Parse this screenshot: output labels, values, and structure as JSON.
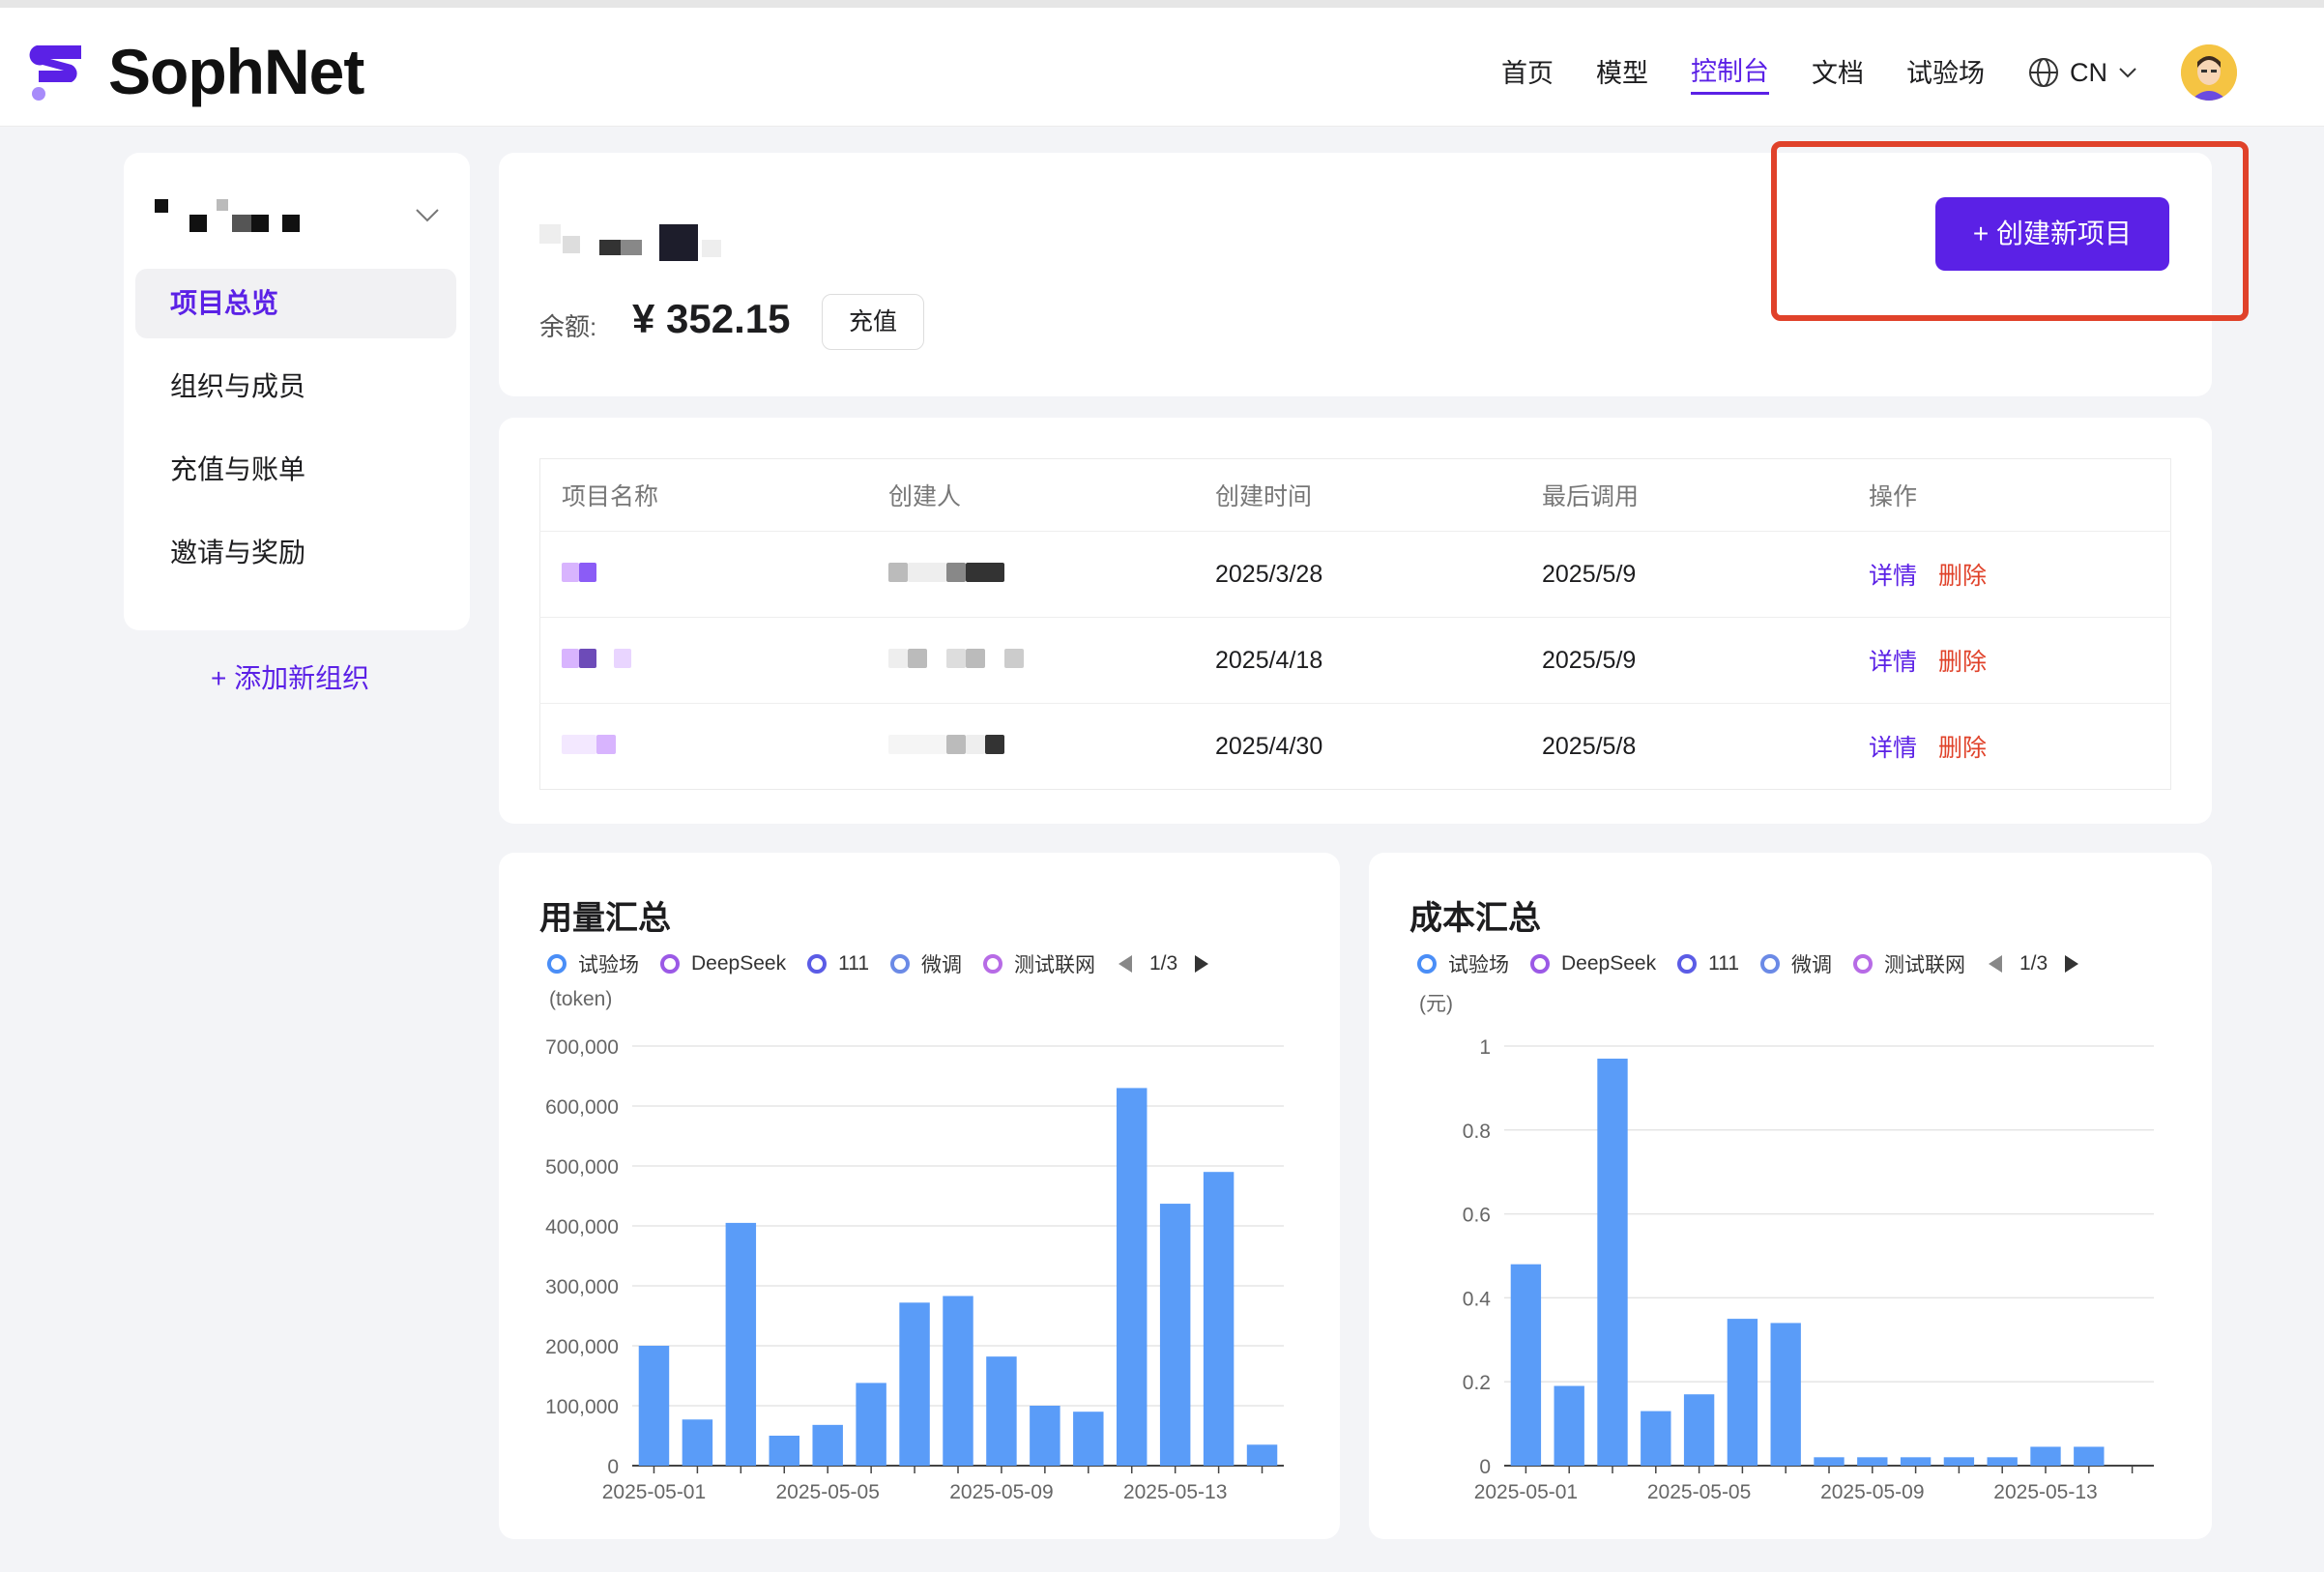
{
  "brand": {
    "name": "SophNet"
  },
  "nav": {
    "items": [
      "首页",
      "模型",
      "控制台",
      "文档",
      "试验场"
    ],
    "active": "控制台",
    "lang": "CN"
  },
  "sidebar": {
    "items": [
      "项目总览",
      "组织与成员",
      "充值与账单",
      "邀请与奖励"
    ],
    "active": "项目总览",
    "add_org": "+ 添加新组织"
  },
  "balance": {
    "label": "余额:",
    "value": "¥ 352.15",
    "recharge": "充值",
    "create_project": "+ 创建新项目"
  },
  "projects": {
    "headers": [
      "项目名称",
      "创建人",
      "创建时间",
      "最后调用",
      "操作"
    ],
    "rows": [
      {
        "created": "2025/3/28",
        "last_call": "2025/5/9"
      },
      {
        "created": "2025/4/18",
        "last_call": "2025/5/9"
      },
      {
        "created": "2025/4/30",
        "last_call": "2025/5/8"
      }
    ],
    "detail_label": "详情",
    "delete_label": "删除"
  },
  "colors": {
    "accent": "#5b21e6",
    "danger": "#e0422a",
    "bar": "#5a9cf8"
  },
  "chart_data": [
    {
      "type": "bar",
      "title": "用量汇总",
      "ylabel": "(token)",
      "legend": [
        "试验场",
        "DeepSeek",
        "111",
        "微调",
        "测试联网"
      ],
      "legend_colors": [
        "#4a8ef7",
        "#9b59e6",
        "#5b5ce6",
        "#6b8ae6",
        "#b76be6"
      ],
      "legend_page": "1/3",
      "categories": [
        "2025-05-01",
        "2025-05-02",
        "2025-05-03",
        "2025-05-04",
        "2025-05-05",
        "2025-05-06",
        "2025-05-07",
        "2025-05-08",
        "2025-05-09",
        "2025-05-10",
        "2025-05-11",
        "2025-05-12",
        "2025-05-13",
        "2025-05-14",
        "2025-05-15"
      ],
      "x_tick_labels": [
        "2025-05-01",
        "2025-05-05",
        "2025-05-09",
        "2025-05-13"
      ],
      "values": [
        200000,
        77000,
        405000,
        50000,
        68000,
        138000,
        272000,
        283000,
        182000,
        100000,
        90000,
        630000,
        437000,
        490000,
        35000
      ],
      "ylim": [
        0,
        700000
      ],
      "y_ticks": [
        "0",
        "100,000",
        "200,000",
        "300,000",
        "400,000",
        "500,000",
        "600,000",
        "700,000"
      ]
    },
    {
      "type": "bar",
      "title": "成本汇总",
      "ylabel": "(元)",
      "legend": [
        "试验场",
        "DeepSeek",
        "111",
        "微调",
        "测试联网"
      ],
      "legend_colors": [
        "#4a8ef7",
        "#9b59e6",
        "#5b5ce6",
        "#6b8ae6",
        "#b76be6"
      ],
      "legend_page": "1/3",
      "categories": [
        "2025-05-01",
        "2025-05-02",
        "2025-05-03",
        "2025-05-04",
        "2025-05-05",
        "2025-05-06",
        "2025-05-07",
        "2025-05-08",
        "2025-05-09",
        "2025-05-10",
        "2025-05-11",
        "2025-05-12",
        "2025-05-13",
        "2025-05-14",
        "2025-05-15"
      ],
      "x_tick_labels": [
        "2025-05-01",
        "2025-05-05",
        "2025-05-09",
        "2025-05-13"
      ],
      "values": [
        0.48,
        0.19,
        0.97,
        0.13,
        0.17,
        0.35,
        0.34,
        0.02,
        0.02,
        0.02,
        0.02,
        0.02,
        0.045,
        0.045,
        0
      ],
      "ylim": [
        0,
        1
      ],
      "y_ticks": [
        "0",
        "0.2",
        "0.4",
        "0.6",
        "0.8",
        "1"
      ]
    }
  ]
}
